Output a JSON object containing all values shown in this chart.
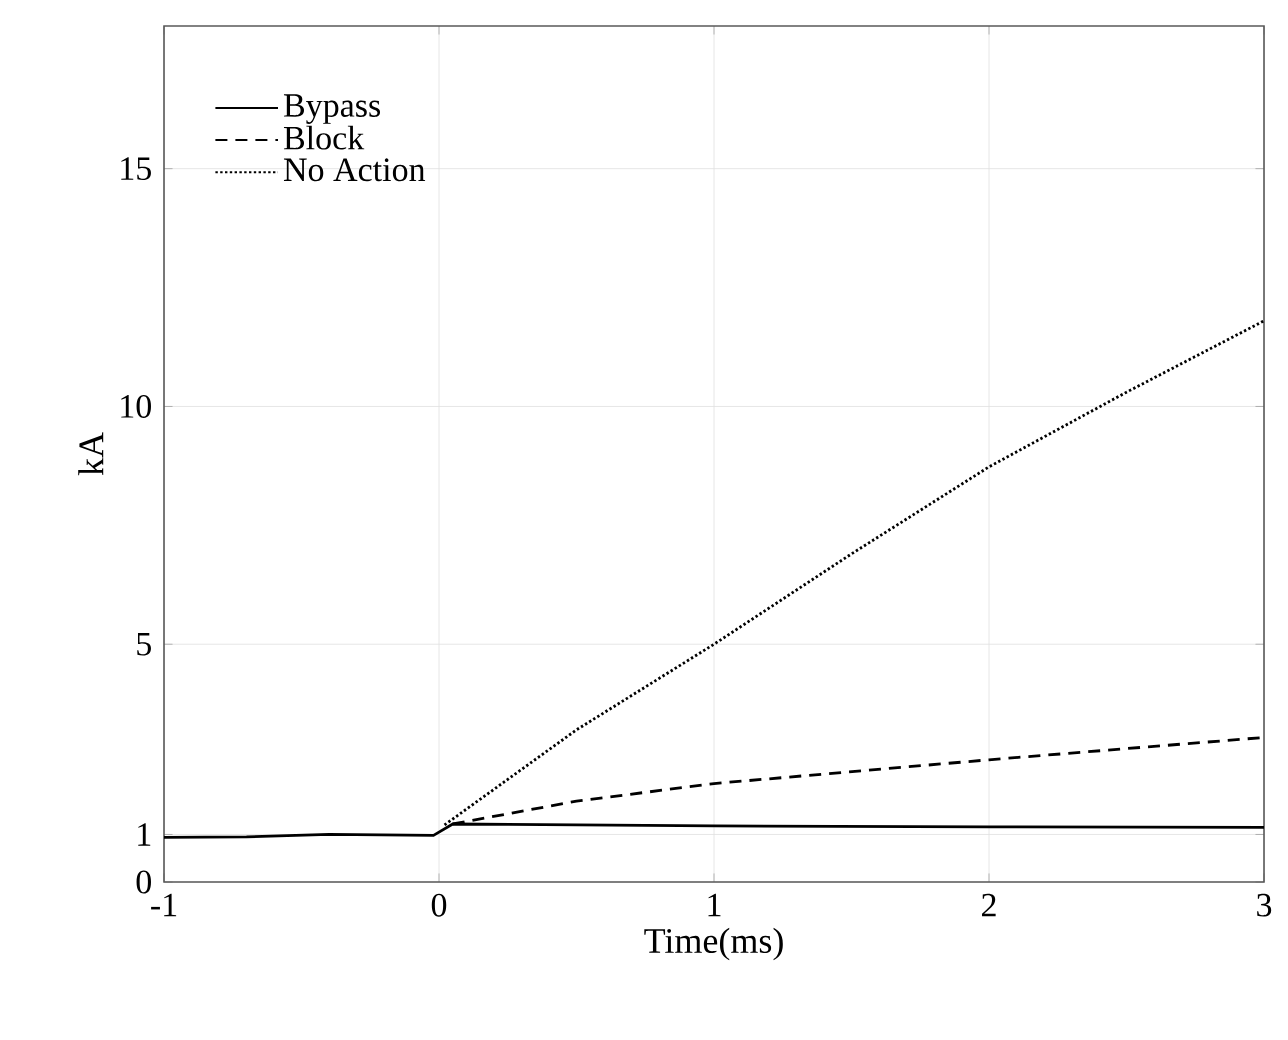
{
  "chart_data": {
    "type": "line",
    "xlabel": "Time(ms)",
    "ylabel": "kA",
    "xlim": [
      -1,
      3
    ],
    "ylim": [
      0,
      18
    ],
    "xticks": [
      -1,
      0,
      1,
      2,
      3
    ],
    "yticks": [
      0,
      1,
      5,
      10,
      15
    ],
    "grid": true,
    "legend": "top left",
    "series": [
      {
        "name": "Bypass",
        "color": "#000000",
        "line_style": "solid",
        "x": [
          -1,
          -0.7,
          -0.4,
          -0.02,
          0.05,
          1,
          2,
          3
        ],
        "values": [
          0.94,
          0.95,
          1.0,
          0.98,
          1.22,
          1.18,
          1.16,
          1.15
        ]
      },
      {
        "name": "Block",
        "color": "#000000",
        "line_style": "dashed",
        "x": [
          0.05,
          0.5,
          1,
          2,
          3
        ],
        "values": [
          1.22,
          1.7,
          2.07,
          2.57,
          3.04
        ]
      },
      {
        "name": "No Action",
        "color": "#000000",
        "line_style": "dotted",
        "x": [
          0.02,
          0.5,
          1,
          1.5,
          2,
          2.5,
          3
        ],
        "values": [
          1.2,
          3.2,
          5.0,
          6.9,
          8.73,
          10.3,
          11.8
        ]
      }
    ]
  }
}
